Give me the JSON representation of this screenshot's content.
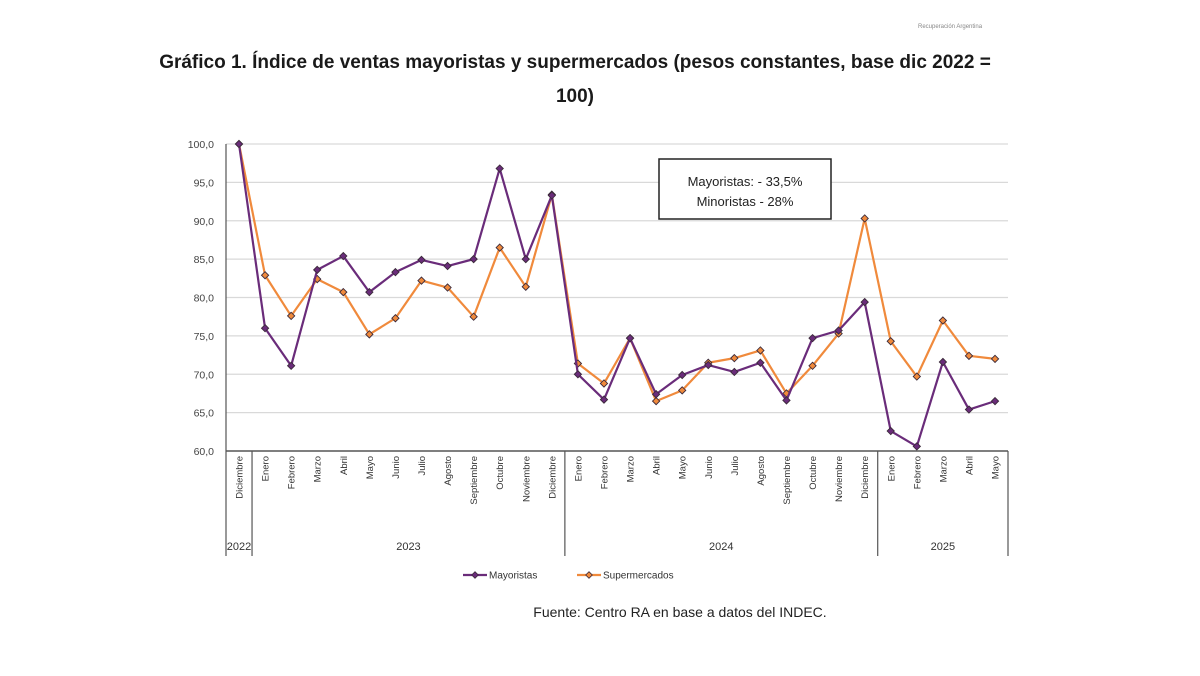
{
  "header": {
    "watermark": "Recuperación Argentina",
    "title": "Gráfico 1. Índice de ventas mayoristas y supermercados (pesos constantes, base dic 2022 = 100)"
  },
  "source": "Fuente: Centro RA en base a datos del INDEC.",
  "chart_data": {
    "type": "line",
    "title": "Gráfico 1. Índice de ventas mayoristas y supermercados (pesos constantes, base dic 2022 = 100)",
    "xlabel": "",
    "ylabel": "",
    "ylim": [
      60,
      100
    ],
    "yticks": [
      "60,0",
      "65,0",
      "70,0",
      "75,0",
      "80,0",
      "85,0",
      "90,0",
      "95,0",
      "100,0"
    ],
    "grid": true,
    "legend_position": "bottom",
    "x": [
      "Diciembre",
      "Enero",
      "Febrero",
      "Marzo",
      "Abril",
      "Mayo",
      "Junio",
      "Julio",
      "Agosto",
      "Septiembre",
      "Octubre",
      "Noviembre",
      "Diciembre",
      "Enero",
      "Febrero",
      "Marzo",
      "Abril",
      "Mayo",
      "Junio",
      "Julio",
      "Agosto",
      "Septiembre",
      "Octubre",
      "Noviembre",
      "Diciembre",
      "Enero",
      "Febrero",
      "Marzo",
      "Abril",
      "Mayo"
    ],
    "year_groups": [
      {
        "label": "2022",
        "count": 1
      },
      {
        "label": "2023",
        "count": 12
      },
      {
        "label": "2024",
        "count": 12
      },
      {
        "label": "2025",
        "count": 5
      }
    ],
    "series": [
      {
        "name": "Mayoristas",
        "color": "#6a2c7a",
        "values": [
          100.0,
          76.0,
          71.1,
          83.6,
          85.4,
          80.7,
          83.3,
          84.9,
          84.1,
          85.0,
          96.8,
          85.0,
          93.3,
          70.0,
          66.7,
          74.7,
          67.4,
          69.9,
          71.2,
          70.3,
          71.5,
          66.6,
          74.7,
          75.7,
          79.4,
          62.6,
          60.6,
          71.6,
          65.4,
          66.5
        ]
      },
      {
        "name": "Supermercados",
        "color": "#f08a3c",
        "values": [
          100.0,
          82.9,
          77.6,
          82.4,
          80.7,
          75.2,
          77.3,
          82.2,
          81.3,
          77.5,
          86.5,
          81.4,
          93.4,
          71.4,
          68.8,
          74.7,
          66.5,
          67.9,
          71.5,
          72.1,
          73.1,
          67.5,
          71.1,
          75.3,
          90.3,
          74.3,
          69.7,
          77.0,
          72.4,
          72.0
        ]
      }
    ],
    "annotation": {
      "lines": [
        "Mayoristas: - 33,5%",
        "Minoristas - 28%"
      ]
    }
  }
}
